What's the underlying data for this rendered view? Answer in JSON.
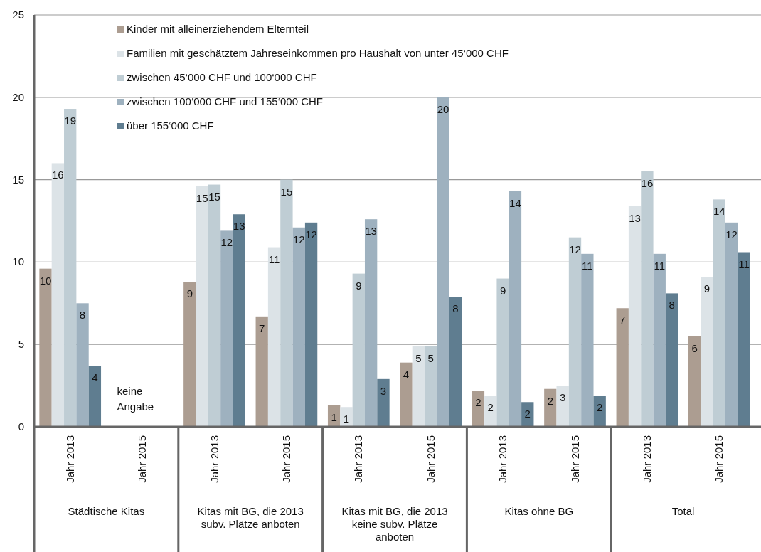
{
  "chart_data": {
    "type": "bar",
    "categories": [
      "Jahr 2013",
      "Jahr 2015",
      "Jahr 2013",
      "Jahr 2015",
      "Jahr 2013",
      "Jahr 2015",
      "Jahr 2013",
      "Jahr 2015",
      "Jahr 2013",
      "Jahr 2015"
    ],
    "series": [
      {
        "name": "Kinder mit alleinerziehendem Elternteil",
        "color": "#ac9d91",
        "values": [
          9.6,
          null,
          8.8,
          6.7,
          1.3,
          3.9,
          2.2,
          2.3,
          7.2,
          5.5
        ],
        "value_labels": [
          "10",
          null,
          "9",
          "7",
          "1",
          "4",
          "2",
          "2",
          "7",
          "6"
        ]
      },
      {
        "name": "Familien mit geschätztem Jahreseinkommen pro Haushalt von unter 45‘000 CHF",
        "color": "#dce3e7",
        "values": [
          16.0,
          null,
          14.6,
          10.9,
          1.2,
          4.9,
          1.9,
          2.5,
          13.4,
          9.1
        ],
        "value_labels": [
          "16",
          null,
          "15",
          "11",
          "1",
          "5",
          "2",
          "3",
          "13",
          "9"
        ]
      },
      {
        "name": "zwischen 45‘000 CHF und 100‘000 CHF",
        "color": "#bfcdd4",
        "values": [
          19.3,
          null,
          14.7,
          15.0,
          9.3,
          4.9,
          9.0,
          11.5,
          15.5,
          13.8
        ],
        "value_labels": [
          "19",
          null,
          "15",
          "15",
          "9",
          "5",
          "9",
          "12",
          "16",
          "14"
        ]
      },
      {
        "name": "zwischen 100‘000 CHF und 155‘000 CHF",
        "color": "#9eb1bf",
        "values": [
          7.5,
          null,
          11.9,
          12.1,
          12.6,
          20.0,
          14.3,
          10.5,
          10.5,
          12.4
        ],
        "value_labels": [
          "8",
          null,
          "12",
          "12",
          "13",
          "20",
          "14",
          "11",
          "11",
          "12"
        ]
      },
      {
        "name": "über 155‘000 CHF",
        "color": "#5f7d90",
        "values": [
          3.7,
          null,
          12.9,
          12.4,
          2.9,
          7.9,
          1.5,
          1.9,
          8.1,
          10.6
        ],
        "value_labels": [
          "4",
          null,
          "13",
          "12",
          "3",
          "8",
          "2",
          "2",
          "8",
          "11"
        ]
      }
    ],
    "ylim": [
      0,
      25
    ],
    "yticks": [
      0,
      5,
      10,
      15,
      20,
      25
    ],
    "grid": "y",
    "legend": "top left",
    "annotations": [
      "keine Angabe",
      "Städtische Kitas",
      "Kitas mit BG, die 2013 subv. Plätze anboten",
      "Kitas mit BG, die 2013 keine subv. Plätze anboten",
      "Kitas ohne BG",
      "Total"
    ]
  }
}
